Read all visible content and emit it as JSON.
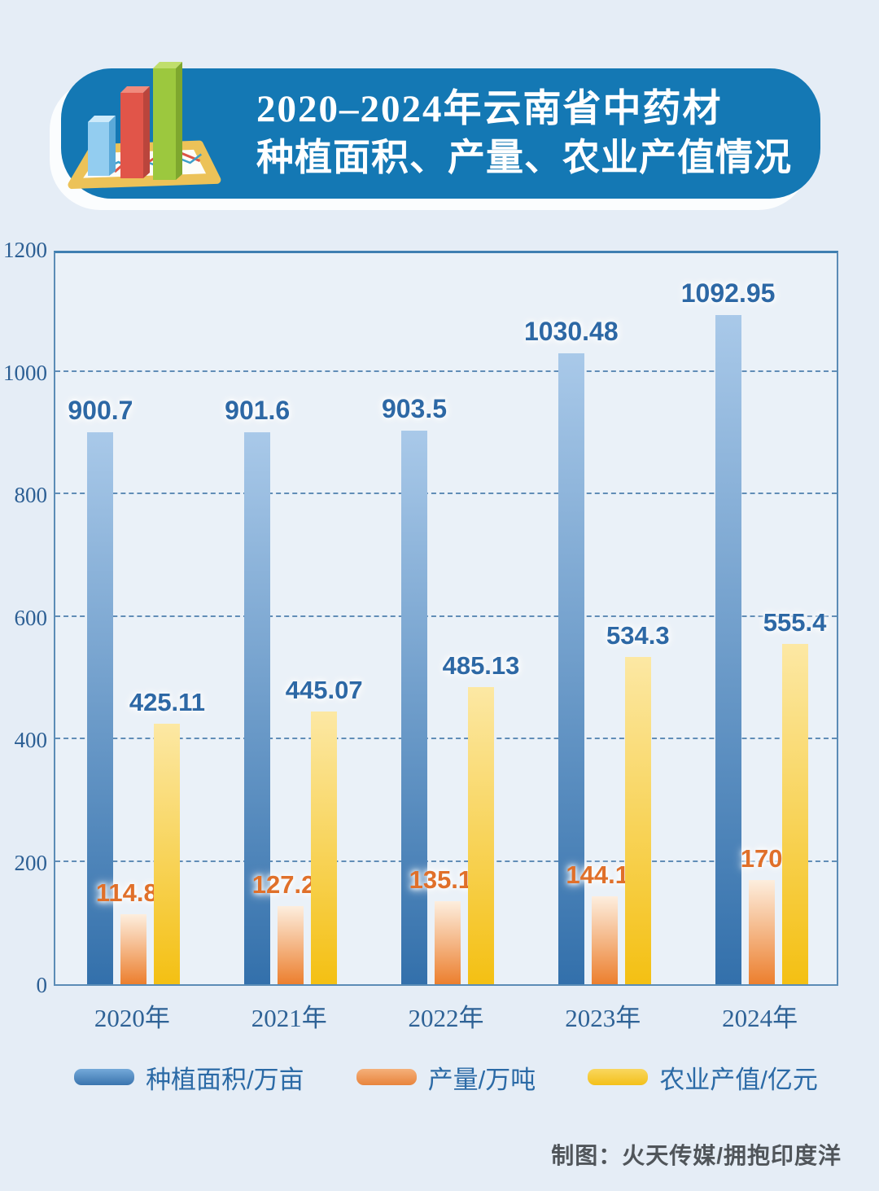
{
  "page": {
    "background": "#e5edf6"
  },
  "header": {
    "banner_color": "#1478b4",
    "title_line1": "2020–2024年云南省中药材",
    "title_line2": "种植面积、产量、农业产值情况",
    "icon": "bar-chart-tablet-icon"
  },
  "chart_data": {
    "type": "bar",
    "title": "2020–2024年云南省中药材种植面积、产量、农业产值情况",
    "categories": [
      "2020年",
      "2021年",
      "2022年",
      "2023年",
      "2024年"
    ],
    "series": [
      {
        "name": "种植面积/万亩",
        "values": [
          900.7,
          901.6,
          903.5,
          1030.48,
          1092.95
        ],
        "bar_top_color": "#a9c9e9",
        "bar_bottom_color": "#3370ab",
        "label_color": "#2d68a5",
        "swatch_top": "#74a9d9",
        "swatch_bottom": "#3a74ae"
      },
      {
        "name": "产量/万吨",
        "values": [
          114.83,
          127.25,
          135.16,
          144.18,
          170
        ],
        "bar_top_color": "#fdeede",
        "bar_bottom_color": "#ec7f2e",
        "label_color": "#e0702a",
        "swatch_top": "#f5b07a",
        "swatch_bottom": "#e8843c"
      },
      {
        "name": "农业产值/亿元",
        "values": [
          425.11,
          445.07,
          485.13,
          534.3,
          555.4
        ],
        "bar_top_color": "#fce husba",
        "label_color": "#2d68a5",
        "swatch_top": "#f9d75f",
        "swatch_bottom": "#f3c01a"
      }
    ],
    "ylim": [
      0,
      1200
    ],
    "ytick_step": 200,
    "yticks": [
      0,
      200,
      400,
      600,
      800,
      1000,
      1200
    ],
    "grid": "horizontal-dashed",
    "legend_position": "bottom",
    "axis_color": "#5b8cb6",
    "gridline_color": "#4a7cac"
  },
  "footer": {
    "credit": "制图：火天传媒/拥抱印度洋"
  }
}
